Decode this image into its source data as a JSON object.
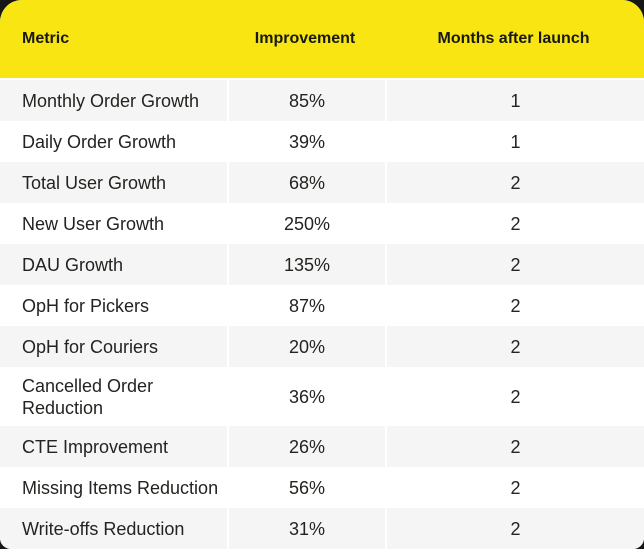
{
  "colors": {
    "header_bg": "#F8E512",
    "row_alt_bg": "#F5F5F5",
    "text": "#232320",
    "page_corner_bg": "#161616"
  },
  "table": {
    "columns": [
      {
        "label": "Metric"
      },
      {
        "label": "Improvement"
      },
      {
        "label": "Months after launch"
      }
    ],
    "rows": [
      {
        "metric": "Monthly Order Growth",
        "improvement": "85%",
        "months": "1"
      },
      {
        "metric": "Daily Order Growth",
        "improvement": "39%",
        "months": "1"
      },
      {
        "metric": "Total User Growth",
        "improvement": "68%",
        "months": "2"
      },
      {
        "metric": "New User Growth",
        "improvement": "250%",
        "months": "2"
      },
      {
        "metric": "DAU Growth",
        "improvement": "135%",
        "months": "2"
      },
      {
        "metric": "OpH for Pickers",
        "improvement": "87%",
        "months": "2"
      },
      {
        "metric": "OpH for Couriers",
        "improvement": "20%",
        "months": "2"
      },
      {
        "metric": "Cancelled Order\nReduction",
        "improvement": "36%",
        "months": "2"
      },
      {
        "metric": "CTE Improvement",
        "improvement": "26%",
        "months": "2"
      },
      {
        "metric": "Missing Items Reduction",
        "improvement": "56%",
        "months": "2"
      },
      {
        "metric": "Write-offs Reduction",
        "improvement": "31%",
        "months": "2"
      }
    ]
  },
  "chart_data": {
    "type": "table",
    "title": "",
    "columns": [
      "Metric",
      "Improvement",
      "Months after launch"
    ],
    "rows": [
      [
        "Monthly Order Growth",
        "85%",
        1
      ],
      [
        "Daily Order Growth",
        "39%",
        1
      ],
      [
        "Total User Growth",
        "68%",
        2
      ],
      [
        "New User Growth",
        "250%",
        2
      ],
      [
        "DAU Growth",
        "135%",
        2
      ],
      [
        "OpH for Pickers",
        "87%",
        2
      ],
      [
        "OpH for Couriers",
        "20%",
        2
      ],
      [
        "Cancelled Order Reduction",
        "36%",
        2
      ],
      [
        "CTE Improvement",
        "26%",
        2
      ],
      [
        "Missing Items Reduction",
        "56%",
        2
      ],
      [
        "Write-offs Reduction",
        "31%",
        2
      ]
    ],
    "layout_hints": {
      "header_style": "yellow banner, bold, rounded top corners",
      "row_striping": "odd rows light gray with 2px white gutters between columns",
      "column_alignment": [
        "left",
        "center",
        "center"
      ]
    }
  }
}
